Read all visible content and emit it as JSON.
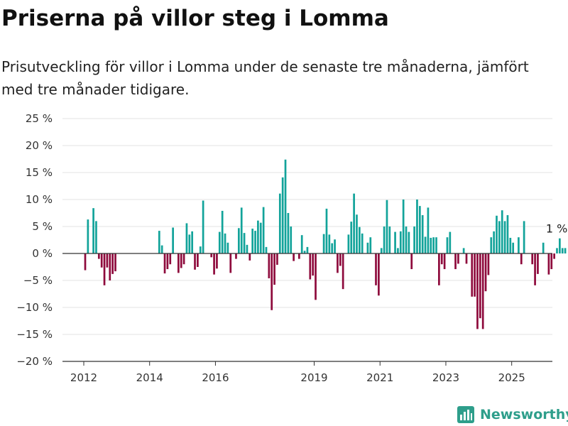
{
  "title": "Priserna på villor steg i Lomma",
  "subtitle_line1": "Prisutveckling för villor i Lomma under de senaste tre månaderna, jämfört",
  "subtitle_line2": "med tre månader tidigare.",
  "brand": {
    "name": "Newsworthy",
    "icon": "bar-chart-logo-icon",
    "color": "#2e9e8b"
  },
  "chart_data": {
    "type": "bar",
    "title": "Priserna på villor steg i Lomma",
    "xlabel": "",
    "ylabel": "",
    "ylim": [
      -20,
      25
    ],
    "yticks": [
      25,
      20,
      15,
      10,
      5,
      0,
      -5,
      -10,
      -15,
      -20
    ],
    "ytick_labels": [
      "25 %",
      "20 %",
      "15 %",
      "10 %",
      "5 %",
      "0 %",
      "−5 %",
      "−10 %",
      "−15 %",
      "−20 %"
    ],
    "xticks": [
      {
        "label": "2012",
        "year": 2012.0
      },
      {
        "label": "2014",
        "year": 2014.0
      },
      {
        "label": "2016",
        "year": 2016.0
      },
      {
        "label": "2019",
        "year": 2019.0
      },
      {
        "label": "2021",
        "year": 2021.0
      },
      {
        "label": "2023",
        "year": 2023.0
      },
      {
        "label": "2025",
        "year": 2025.0
      }
    ],
    "x_start": "2012-01",
    "frequency": "monthly",
    "grid": true,
    "legend": "none",
    "colors": {
      "positive": "#12a39a",
      "negative": "#8e0a3c"
    },
    "annotation": {
      "text": "1 %",
      "target": "last"
    },
    "values": [
      -3.1,
      6.3,
      0,
      8.4,
      6.0,
      -1.0,
      -2.6,
      -5.9,
      -2.6,
      -5.0,
      -3.8,
      -3.3,
      0,
      0,
      0,
      0,
      0,
      0,
      0,
      0,
      0,
      0,
      0,
      0,
      0,
      0,
      0,
      4.2,
      1.5,
      -3.7,
      -2.9,
      -2.0,
      4.8,
      0,
      -3.6,
      -2.7,
      -2.0,
      5.6,
      3.5,
      4.1,
      -3.0,
      -2.5,
      1.3,
      9.8,
      0,
      0,
      -0.7,
      -3.9,
      -2.8,
      4.0,
      7.9,
      3.7,
      2.0,
      -3.6,
      0,
      -1.0,
      4.7,
      8.5,
      3.8,
      1.6,
      -1.3,
      4.6,
      4.2,
      6.1,
      5.7,
      8.6,
      1.2,
      -4.6,
      -10.5,
      -5.8,
      -2.1,
      11.1,
      14.1,
      17.4,
      7.5,
      5.0,
      -1.4,
      0,
      -1.0,
      3.4,
      0.5,
      1.2,
      -4.8,
      -4.1,
      -8.6,
      0,
      0,
      3.6,
      8.3,
      3.5,
      1.9,
      2.6,
      -3.6,
      -2.3,
      -6.6,
      0,
      3.5,
      5.9,
      11.1,
      7.2,
      4.9,
      3.7,
      0,
      2.0,
      3.0,
      0,
      -5.9,
      -7.8,
      1.0,
      5.0,
      9.9,
      5.0,
      0,
      4.0,
      1.0,
      4.1,
      10.0,
      5.0,
      4.0,
      -2.9,
      5.0,
      10.0,
      8.8,
      7.1,
      3.1,
      8.5,
      2.9,
      3.0,
      3.0,
      -5.9,
      -2.0,
      -2.9,
      3.0,
      4.0,
      0,
      -2.9,
      -1.9,
      0,
      1.0,
      -1.9,
      0,
      -8.0,
      -8.0,
      -14.0,
      -12.0,
      -14.0,
      -7.0,
      -4.0,
      3.0,
      4.1,
      7.0,
      6.0,
      8.0,
      6.0,
      7.1,
      2.9,
      2.0,
      0,
      3.0,
      -2.0,
      6.0,
      0,
      0,
      -2.0,
      -5.9,
      -3.8,
      0,
      2.0,
      0,
      -3.9,
      -2.9,
      -1.0,
      1.0,
      2.8,
      1.0,
      1.0
    ]
  }
}
